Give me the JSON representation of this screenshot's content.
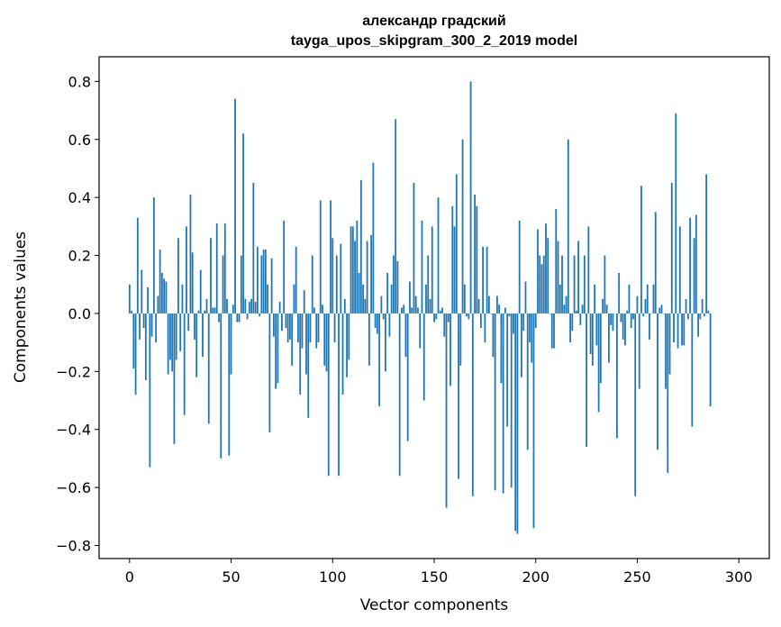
{
  "chart_data": {
    "type": "bar",
    "title_line1": "александр градский",
    "title_line2": "tayga_upos_skipgram_300_2_2019 model",
    "xlabel": "Vector components",
    "ylabel": "Components values",
    "xlim": [
      -15,
      315
    ],
    "ylim": [
      -0.845,
      0.885
    ],
    "xticks": [
      0,
      50,
      100,
      150,
      200,
      250,
      300
    ],
    "xtick_labels": [
      "0",
      "50",
      "100",
      "150",
      "200",
      "250",
      "300"
    ],
    "yticks": [
      -0.8,
      -0.6,
      -0.4,
      -0.2,
      0.0,
      0.2,
      0.4,
      0.6,
      0.8
    ],
    "ytick_labels": [
      "−0.8",
      "−0.6",
      "−0.4",
      "−0.2",
      "0.0",
      "0.2",
      "0.4",
      "0.6",
      "0.8"
    ],
    "bar_color": "#1f77b4",
    "values": [
      0.1,
      0.01,
      -0.19,
      -0.28,
      0.33,
      -0.09,
      0.15,
      -0.05,
      -0.23,
      0.09,
      -0.53,
      -0.08,
      0.4,
      -0.1,
      0.06,
      0.22,
      0.14,
      0.12,
      0.11,
      -0.21,
      -0.16,
      -0.2,
      -0.45,
      -0.16,
      0.26,
      -0.13,
      0.1,
      -0.35,
      0.3,
      -0.06,
      0.41,
      0.21,
      -0.09,
      -0.22,
      0.01,
      0.15,
      -0.15,
      0.01,
      0.05,
      -0.38,
      0.26,
      0.02,
      0.02,
      0.31,
      -0.03,
      -0.5,
      0.2,
      0.31,
      0.05,
      -0.49,
      -0.21,
      0.03,
      0.74,
      -0.03,
      -0.03,
      0.2,
      0.62,
      0.05,
      -0.02,
      0.04,
      0.05,
      0.45,
      0.04,
      0.23,
      -0.01,
      0.2,
      0.22,
      0.22,
      0.1,
      -0.41,
      0.19,
      -0.08,
      -0.26,
      -0.24,
      0.04,
      -0.06,
      0.32,
      -0.05,
      -0.1,
      -0.09,
      -0.18,
      0.1,
      0.23,
      -0.1,
      -0.28,
      -0.12,
      0.08,
      -0.21,
      -0.36,
      -0.1,
      0.2,
      0.02,
      -0.12,
      -0.1,
      0.39,
      0.03,
      -0.18,
      -0.2,
      -0.56,
      0.39,
      0.26,
      -0.1,
      0.2,
      -0.56,
      0.24,
      -0.28,
      0.05,
      -0.22,
      -0.16,
      0.3,
      0.3,
      0.25,
      0.32,
      0.14,
      0.46,
      0.1,
      0.05,
      0.25,
      -0.18,
      0.27,
      0.52,
      -0.05,
      -0.07,
      -0.32,
      0.06,
      -0.02,
      -0.2,
      0.14,
      -0.08,
      0.1,
      0.2,
      0.67,
      0.18,
      -0.56,
      0.02,
      0.03,
      -0.15,
      -0.44,
      0.11,
      0.02,
      0.45,
      0.06,
      0.02,
      -0.12,
      0.32,
      -0.3,
      0.1,
      0.2,
      0.05,
      0.3,
      -0.03,
      -0.02,
      0.4,
      0.01,
      0.02,
      -0.08,
      -0.67,
      -0.03,
      -0.25,
      0.37,
      0.3,
      0.48,
      -0.57,
      -0.18,
      0.6,
      0.1,
      -0.01,
      -0.02,
      0.8,
      -0.63,
      0.41,
      0.37,
      0.05,
      -0.05,
      0.23,
      -0.1,
      0.23,
      0.06,
      0.0,
      -0.15,
      -0.61,
      0.06,
      0.03,
      -0.24,
      -0.62,
      0.02,
      -0.39,
      -0.01,
      -0.6,
      -0.07,
      -0.75,
      -0.76,
      0.32,
      -0.22,
      -0.06,
      0.11,
      -0.47,
      -0.1,
      -0.17,
      -0.74,
      -0.05,
      0.29,
      0.2,
      0.17,
      0.2,
      0.31,
      0.26,
      0.0,
      -0.12,
      -0.12,
      0.36,
      0.25,
      0.1,
      0.2,
      0.03,
      0.06,
      0.6,
      -0.1,
      -0.06,
      0.2,
      0.01,
      0.25,
      -0.04,
      0.03,
      0.2,
      -0.46,
      0.3,
      -0.14,
      -0.18,
      0.1,
      -0.11,
      -0.34,
      -0.24,
      0.05,
      0.2,
      0.03,
      -0.17,
      -0.04,
      -0.06,
      0.0,
      -0.43,
      0.14,
      -0.03,
      -0.09,
      -0.11,
      0.01,
      0.1,
      -0.05,
      -0.02,
      -0.63,
      0.06,
      -0.26,
      0.44,
      -0.01,
      0.05,
      0.1,
      -0.09,
      0.0,
      0.1,
      0.35,
      -0.47,
      0.02,
      0.03,
      0.0,
      -0.26,
      -0.55,
      -0.21,
      0.45,
      -0.1,
      0.69,
      -0.12,
      0.3,
      -0.11,
      -0.11,
      0.05,
      -0.02,
      0.33,
      -0.39,
      0.26,
      0.34,
      -0.08,
      -0.02,
      0.05,
      -0.01,
      0.48,
      0.01,
      -0.32
    ]
  }
}
